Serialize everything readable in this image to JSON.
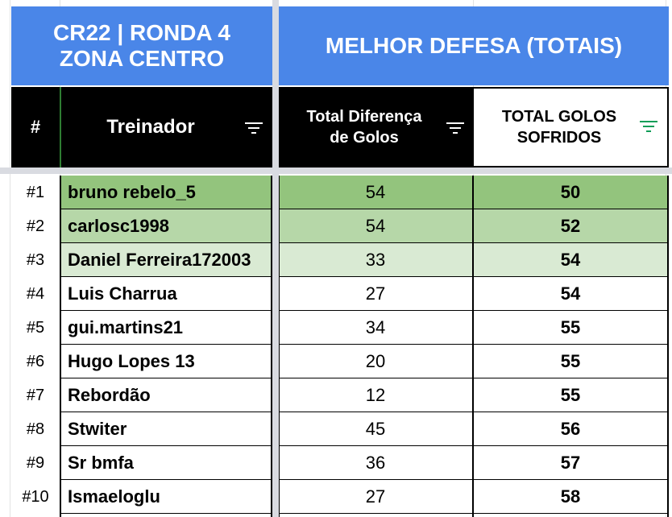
{
  "banner": {
    "left_line1": "CR22 | RONDA 4",
    "left_line2": "ZONA CENTRO",
    "right": "MELHOR DEFESA (TOTAIS)"
  },
  "headers": {
    "rank": "#",
    "coach": "Treinador",
    "goal_diff_line1": "Total Diferença",
    "goal_diff_line2": "de Golos",
    "goals_conceded_line1": "TOTAL GOLOS",
    "goals_conceded_line2": "SOFRIDOS"
  },
  "colors": {
    "banner": "#4a86e8",
    "header_bg": "#000000",
    "row1": "#93c47d",
    "row2": "#b6d7a8",
    "row3": "#d9ead3",
    "filter_active": "#0f9d58"
  },
  "rows": [
    {
      "rank": "#1",
      "coach": "bruno rebelo_5",
      "diff": "54",
      "conceded": "50"
    },
    {
      "rank": "#2",
      "coach": "carlosc1998",
      "diff": "54",
      "conceded": "52"
    },
    {
      "rank": "#3",
      "coach": "Daniel Ferreira172003",
      "diff": "33",
      "conceded": "54"
    },
    {
      "rank": "#4",
      "coach": "Luis Charrua",
      "diff": "27",
      "conceded": "54"
    },
    {
      "rank": "#5",
      "coach": "gui.martins21",
      "diff": "34",
      "conceded": "55"
    },
    {
      "rank": "#6",
      "coach": "Hugo Lopes 13",
      "diff": "20",
      "conceded": "55"
    },
    {
      "rank": "#7",
      "coach": "Rebordão",
      "diff": "12",
      "conceded": "55"
    },
    {
      "rank": "#8",
      "coach": "Stwiter",
      "diff": "45",
      "conceded": "56"
    },
    {
      "rank": "#9",
      "coach": "Sr bmfa",
      "diff": "36",
      "conceded": "57"
    },
    {
      "rank": "#10",
      "coach": "Ismaeloglu",
      "diff": "27",
      "conceded": "58"
    }
  ]
}
